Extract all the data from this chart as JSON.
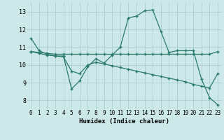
{
  "xlabel": "Humidex (Indice chaleur)",
  "ylabel": "",
  "xlim": [
    -0.5,
    23.5
  ],
  "ylim": [
    7.5,
    13.5
  ],
  "yticks": [
    8,
    9,
    10,
    11,
    12,
    13
  ],
  "xticks": [
    0,
    1,
    2,
    3,
    4,
    5,
    6,
    7,
    8,
    9,
    10,
    11,
    12,
    13,
    14,
    15,
    16,
    17,
    18,
    19,
    20,
    21,
    22,
    23
  ],
  "bg_color": "#cce8e8",
  "line_color": "#2a7a6a",
  "grid_color": "#aacfcf",
  "line1": [
    11.5,
    10.8,
    10.6,
    10.5,
    10.5,
    8.65,
    9.1,
    9.9,
    10.35,
    10.1,
    10.55,
    11.0,
    12.65,
    12.75,
    13.05,
    13.1,
    11.9,
    10.7,
    10.8,
    10.8,
    10.8,
    9.2,
    8.15,
    7.75
  ],
  "line2": [
    10.75,
    10.7,
    10.65,
    10.6,
    10.6,
    10.6,
    10.6,
    10.6,
    10.6,
    10.6,
    10.6,
    10.6,
    10.6,
    10.6,
    10.6,
    10.6,
    10.6,
    10.6,
    10.6,
    10.6,
    10.6,
    10.6,
    10.6,
    10.75
  ],
  "line3": [
    10.75,
    10.65,
    10.55,
    10.5,
    10.45,
    9.65,
    9.5,
    10.0,
    10.15,
    10.05,
    9.95,
    9.85,
    9.75,
    9.65,
    9.55,
    9.45,
    9.35,
    9.25,
    9.15,
    9.05,
    8.9,
    8.8,
    8.7,
    9.5
  ],
  "hours": [
    0,
    1,
    2,
    3,
    4,
    5,
    6,
    7,
    8,
    9,
    10,
    11,
    12,
    13,
    14,
    15,
    16,
    17,
    18,
    19,
    20,
    21,
    22,
    23
  ]
}
